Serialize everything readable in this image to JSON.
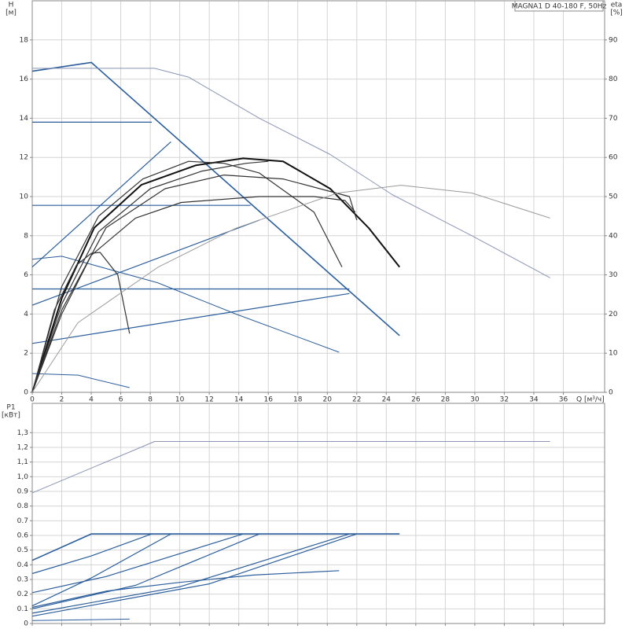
{
  "chart_data": [
    {
      "type": "line",
      "title": "MAGNA1 D 40-180 F, 50Hz",
      "ylabel": "H",
      "ylabel_unit": "[м]",
      "y2label": "eta",
      "y2label_unit": "[%]",
      "xlabel": "Q [м³/ч]",
      "xlim": [
        0,
        38.8
      ],
      "xticks": [
        0,
        2,
        4,
        6,
        8,
        10,
        12,
        14,
        16,
        18,
        20,
        22,
        24,
        26,
        28,
        30,
        32,
        34,
        36
      ],
      "ylim": [
        0,
        20
      ],
      "yticks": [
        0,
        2,
        4,
        6,
        8,
        10,
        12,
        14,
        16,
        18
      ],
      "y2lim": [
        0,
        100
      ],
      "y2ticks": [
        0,
        10,
        20,
        30,
        40,
        50,
        60,
        70,
        80,
        90
      ],
      "grid": true,
      "xtick_labels": true,
      "series": [
        {
          "color": "#2a5d9b",
          "width": 1.6,
          "x": [
            0,
            4,
            24.9
          ],
          "values": [
            16.4,
            16.85,
            2.9
          ]
        },
        {
          "color": "#8a95b5",
          "width": 1,
          "x": [
            0,
            8.3,
            10.6,
            15.4,
            20.2,
            24.4,
            29.8,
            35.1
          ],
          "values": [
            16.55,
            16.55,
            16.1,
            14.0,
            12.15,
            10.1,
            8.0,
            5.85
          ]
        },
        {
          "color": "#2a5d9b",
          "width": 1.2,
          "x": [
            0,
            8.1
          ],
          "values": [
            13.8,
            13.8
          ]
        },
        {
          "color": "#2a5d9b",
          "width": 1.2,
          "x": [
            0,
            14.8
          ],
          "values": [
            9.55,
            9.55
          ]
        },
        {
          "color": "#2a5d9b",
          "width": 1.2,
          "x": [
            0,
            21.5
          ],
          "values": [
            5.28,
            5.28
          ]
        },
        {
          "color": "#2a5d9b",
          "width": 1.2,
          "x": [
            0,
            9.4
          ],
          "values": [
            6.4,
            12.8
          ]
        },
        {
          "color": "#2a5d9b",
          "width": 1.2,
          "x": [
            0,
            15.4
          ],
          "values": [
            4.45,
            8.8
          ]
        },
        {
          "color": "#2a5d9b",
          "width": 1.2,
          "x": [
            0,
            21.5
          ],
          "values": [
            2.5,
            5.05
          ]
        },
        {
          "color": "#2a5d9b",
          "width": 1,
          "x": [
            0,
            2,
            8.5,
            13.8,
            20.8
          ],
          "values": [
            6.8,
            6.95,
            5.6,
            4.0,
            2.05
          ]
        },
        {
          "color": "#2a5d9b",
          "width": 1,
          "x": [
            0,
            3.1,
            6.6
          ],
          "values": [
            0.96,
            0.88,
            0.24
          ]
        },
        {
          "color": "#111111",
          "width": 2,
          "x": [
            0,
            2,
            4.2,
            7.4,
            11.1,
            14.3,
            17,
            20.2,
            22.8,
            24.9
          ],
          "values": [
            0,
            4.8,
            8.4,
            10.6,
            11.6,
            11.95,
            11.8,
            10.4,
            8.4,
            6.4
          ]
        },
        {
          "color": "#333333",
          "width": 1.2,
          "x": [
            0,
            2,
            4.5,
            7.5,
            10.6,
            13,
            15.4,
            19.1,
            21
          ],
          "values": [
            0,
            5.4,
            9.0,
            10.9,
            11.8,
            11.7,
            11.2,
            9.2,
            6.4
          ]
        },
        {
          "color": "#333333",
          "width": 1.2,
          "x": [
            0,
            1.5,
            3,
            4,
            4.6,
            5.8,
            6.6
          ],
          "values": [
            0,
            4.2,
            6.5,
            7.1,
            7.15,
            6.0,
            3.0
          ]
        },
        {
          "color": "#333333",
          "width": 1.2,
          "x": [
            0,
            2,
            4,
            7,
            10.1,
            15.4,
            19.1,
            21.2,
            21.9
          ],
          "values": [
            0,
            4.0,
            7.0,
            8.9,
            9.7,
            10.0,
            10.0,
            9.8,
            9.2
          ]
        },
        {
          "color": "#333333",
          "width": 1.2,
          "x": [
            0,
            2,
            4.5,
            8,
            11.5,
            14.5,
            16
          ],
          "values": [
            0,
            4.5,
            8.2,
            10.4,
            11.3,
            11.7,
            11.8
          ]
        },
        {
          "color": "#333333",
          "width": 1.2,
          "x": [
            0,
            2,
            5,
            9,
            13,
            17,
            21.5,
            22
          ],
          "values": [
            0,
            4.2,
            8.4,
            10.4,
            11.1,
            10.9,
            10.0,
            8.8
          ]
        },
        {
          "color": "#9a9a9a",
          "width": 1,
          "axis": "y2",
          "x": [
            0,
            3.1,
            8.5,
            13.8,
            20.7,
            25,
            29.8,
            35.1
          ],
          "values": [
            0,
            17.8,
            31.9,
            41.9,
            50.9,
            52.9,
            50.9,
            44.5
          ]
        }
      ]
    },
    {
      "type": "line",
      "ylabel": "P1",
      "ylabel_unit": "[кВт]",
      "xlim": [
        0,
        38.8
      ],
      "xticks": [
        0,
        2,
        4,
        6,
        8,
        10,
        12,
        14,
        16,
        18,
        20,
        22,
        24,
        26,
        28,
        30,
        32,
        34,
        36
      ],
      "ylim": [
        0,
        1.5
      ],
      "yticks": [
        0,
        0.1,
        0.2,
        0.3,
        0.4,
        0.5,
        0.6,
        0.7,
        0.8,
        0.9,
        {
          "value": 1.0,
          "label": "1,0"
        },
        {
          "value": 1.1,
          "label": "1,1"
        },
        {
          "value": 1.2,
          "label": "1,2"
        },
        {
          "value": 1.3,
          "label": "1,3"
        }
      ],
      "grid": true,
      "xtick_labels": false,
      "series": [
        {
          "color": "#8a95b5",
          "width": 1,
          "x": [
            0,
            8.3,
            35.1
          ],
          "values": [
            0.89,
            1.24,
            1.24
          ]
        },
        {
          "color": "#2a5d9b",
          "width": 1.6,
          "x": [
            0,
            4,
            24.9
          ],
          "values": [
            0.43,
            0.61,
            0.61
          ]
        },
        {
          "color": "#2a5d9b",
          "width": 1.2,
          "x": [
            0,
            4,
            8.1
          ],
          "values": [
            0.34,
            0.46,
            0.61
          ]
        },
        {
          "color": "#2a5d9b",
          "width": 1.2,
          "x": [
            0,
            4,
            9.4
          ],
          "values": [
            0.12,
            0.31,
            0.61
          ]
        },
        {
          "color": "#2a5d9b",
          "width": 1.2,
          "x": [
            0,
            5,
            14.3
          ],
          "values": [
            0.21,
            0.32,
            0.61
          ]
        },
        {
          "color": "#2a5d9b",
          "width": 1.2,
          "x": [
            0,
            7,
            15.4
          ],
          "values": [
            0.1,
            0.26,
            0.61
          ]
        },
        {
          "color": "#2a5d9b",
          "width": 1.2,
          "x": [
            0,
            10,
            21.5
          ],
          "values": [
            0.07,
            0.25,
            0.61
          ]
        },
        {
          "color": "#2a5d9b",
          "width": 1.2,
          "x": [
            0,
            12,
            22
          ],
          "values": [
            0.05,
            0.27,
            0.61
          ]
        },
        {
          "color": "#2a5d9b",
          "width": 1.2,
          "x": [
            0,
            5,
            10,
            15,
            20.8
          ],
          "values": [
            0.11,
            0.22,
            0.28,
            0.33,
            0.36
          ]
        },
        {
          "color": "#2a5d9b",
          "width": 1,
          "x": [
            0,
            6.6
          ],
          "values": [
            0.02,
            0.03
          ]
        }
      ]
    }
  ]
}
